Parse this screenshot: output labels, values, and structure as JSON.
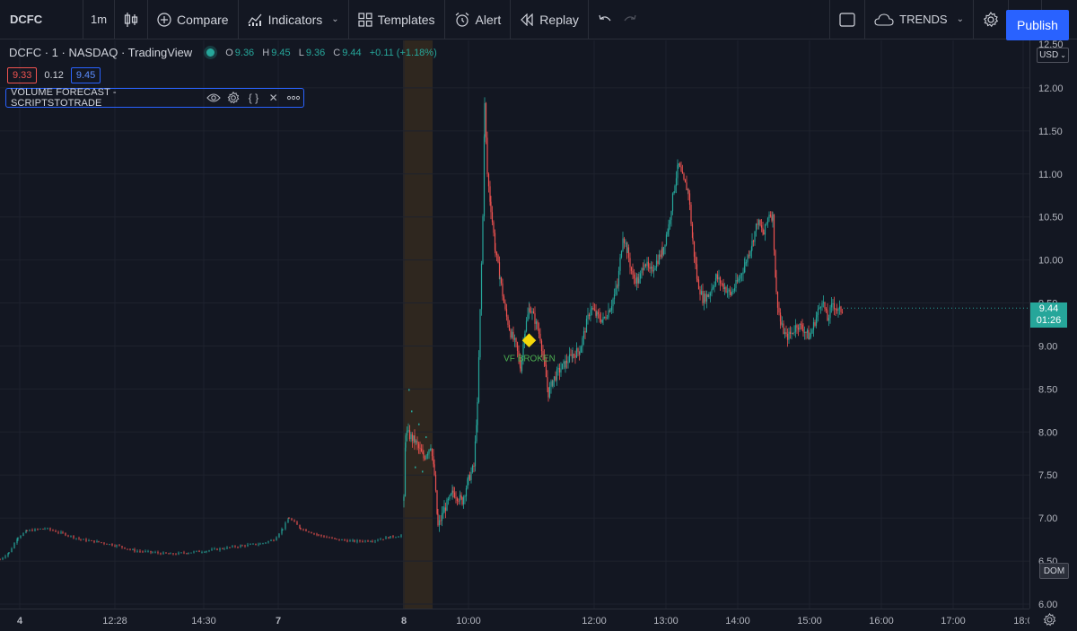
{
  "toolbar": {
    "symbol": "DCFC",
    "interval": "1m",
    "compare": "Compare",
    "indicators": "Indicators",
    "templates": "Templates",
    "alert": "Alert",
    "replay": "Replay",
    "trends": "TRENDS",
    "publish": "Publish"
  },
  "legend": {
    "title": "DCFC · 1 · NASDAQ · TradingView",
    "o_label": "O",
    "o": "9.36",
    "h_label": "H",
    "h": "9.45",
    "l_label": "L",
    "l": "9.36",
    "c_label": "C",
    "c": "9.44",
    "change": "+0.11 (+1.18%)",
    "bid": "9.33",
    "spread": "0.12",
    "ask": "9.45"
  },
  "indicator": {
    "name": "VOLUME FORECAST - SCRIPTSTOTRADE"
  },
  "price_axis": {
    "currency": "USD",
    "last_price": "9.44",
    "countdown": "01:26",
    "dom": "DOM"
  },
  "colors": {
    "up": "#26a69a",
    "down": "#ef5350",
    "accent": "#2962ff",
    "marker": "#f5d90a",
    "session_band": "#3a2d1f"
  },
  "chart_data": {
    "type": "candlestick",
    "ylim": [
      6.0,
      12.5
    ],
    "y_ticks": [
      "12.00",
      "11.50",
      "11.00",
      "10.50",
      "10.00",
      "9.50",
      "9.00",
      "8.50",
      "8.00",
      "7.50",
      "7.00",
      "6.50",
      "6.00"
    ],
    "y_top_label": "12.50",
    "x_ticks": [
      "4",
      "12:28",
      "14:30",
      "7",
      "8",
      "10:00",
      "12:00",
      "13:00",
      "14:00",
      "15:00",
      "16:00",
      "17:00",
      "18:0"
    ],
    "annotation": {
      "label": "VF BROKEN",
      "price": 9.06
    },
    "segments": [
      {
        "name": "day-4",
        "points": [
          [
            0,
            6.52
          ],
          [
            10,
            6.6
          ],
          [
            20,
            6.78
          ],
          [
            30,
            6.85
          ],
          [
            50,
            6.88
          ],
          [
            70,
            6.82
          ],
          [
            90,
            6.75
          ],
          [
            110,
            6.72
          ],
          [
            130,
            6.68
          ],
          [
            150,
            6.62
          ],
          [
            170,
            6.6
          ],
          [
            190,
            6.58
          ],
          [
            210,
            6.6
          ],
          [
            230,
            6.62
          ],
          [
            250,
            6.65
          ],
          [
            270,
            6.68
          ],
          [
            290,
            6.7
          ],
          [
            305,
            6.75
          ],
          [
            315,
            6.88
          ],
          [
            322,
            7.0
          ]
        ]
      },
      {
        "name": "day-7",
        "points": [
          [
            322,
            7.0
          ],
          [
            335,
            6.88
          ],
          [
            355,
            6.8
          ],
          [
            375,
            6.75
          ],
          [
            395,
            6.73
          ],
          [
            415,
            6.74
          ],
          [
            435,
            6.78
          ],
          [
            448,
            6.8
          ]
        ]
      },
      {
        "name": "day-8",
        "points": [
          [
            450,
            7.2
          ],
          [
            452,
            8.0
          ],
          [
            462,
            7.9
          ],
          [
            472,
            7.7
          ],
          [
            480,
            7.85
          ],
          [
            484,
            7.5
          ],
          [
            488,
            6.9
          ],
          [
            495,
            7.1
          ],
          [
            505,
            7.3
          ],
          [
            515,
            7.2
          ],
          [
            522,
            7.45
          ],
          [
            528,
            7.6
          ],
          [
            532,
            8.3
          ],
          [
            535,
            9.4
          ],
          [
            538,
            10.5
          ],
          [
            540,
            11.8
          ],
          [
            543,
            11.0
          ],
          [
            547,
            10.6
          ],
          [
            552,
            10.1
          ],
          [
            557,
            9.8
          ],
          [
            563,
            9.4
          ],
          [
            569,
            9.15
          ],
          [
            575,
            9.0
          ],
          [
            580,
            8.75
          ],
          [
            585,
            9.2
          ],
          [
            590,
            9.45
          ],
          [
            596,
            9.3
          ],
          [
            602,
            9.1
          ],
          [
            607,
            8.75
          ],
          [
            611,
            8.45
          ],
          [
            616,
            8.6
          ],
          [
            622,
            8.7
          ],
          [
            630,
            8.8
          ],
          [
            638,
            8.9
          ],
          [
            646,
            8.95
          ],
          [
            652,
            9.2
          ],
          [
            658,
            9.45
          ],
          [
            665,
            9.35
          ],
          [
            672,
            9.3
          ],
          [
            680,
            9.45
          ],
          [
            688,
            9.7
          ],
          [
            694,
            10.3
          ],
          [
            699,
            10.1
          ],
          [
            705,
            9.8
          ],
          [
            712,
            9.75
          ],
          [
            718,
            10.0
          ],
          [
            724,
            9.85
          ],
          [
            730,
            9.95
          ],
          [
            738,
            10.1
          ],
          [
            745,
            10.4
          ],
          [
            752,
            10.9
          ],
          [
            756,
            11.1
          ],
          [
            762,
            10.9
          ],
          [
            767,
            10.8
          ],
          [
            772,
            10.2
          ],
          [
            777,
            9.75
          ],
          [
            783,
            9.55
          ],
          [
            790,
            9.6
          ],
          [
            798,
            9.8
          ],
          [
            806,
            9.7
          ],
          [
            814,
            9.6
          ],
          [
            822,
            9.75
          ],
          [
            830,
            9.95
          ],
          [
            838,
            10.2
          ],
          [
            844,
            10.45
          ],
          [
            851,
            10.3
          ],
          [
            857,
            10.55
          ],
          [
            861,
            10.5
          ],
          [
            865,
            9.6
          ],
          [
            870,
            9.25
          ],
          [
            876,
            9.1
          ],
          [
            882,
            9.15
          ],
          [
            888,
            9.25
          ],
          [
            895,
            9.2
          ],
          [
            902,
            9.1
          ],
          [
            910,
            9.35
          ],
          [
            916,
            9.55
          ],
          [
            922,
            9.3
          ],
          [
            928,
            9.5
          ],
          [
            934,
            9.4
          ],
          [
            940,
            9.44
          ]
        ]
      }
    ]
  }
}
